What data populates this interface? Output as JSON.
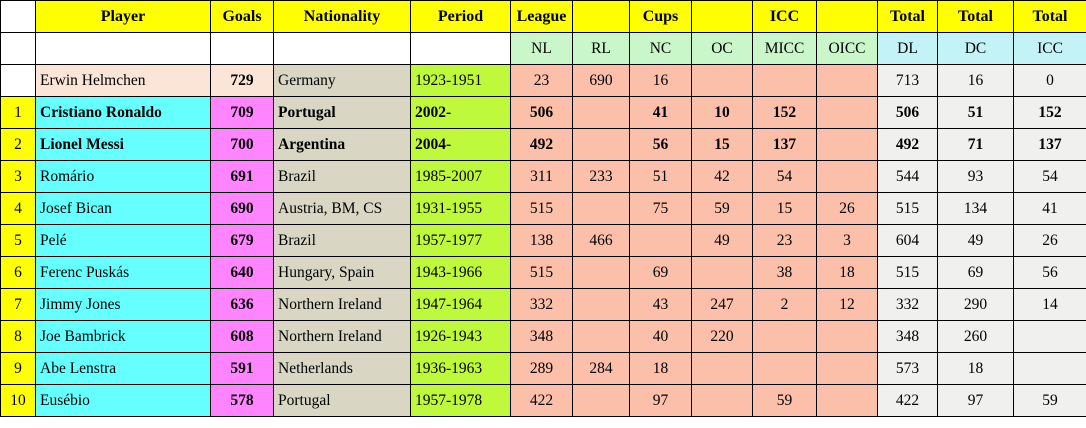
{
  "chart_data": {
    "type": "table",
    "header_row1": [
      "",
      "Player",
      "Goals",
      "Nationality",
      "Period",
      "League",
      "",
      "Cups",
      "",
      "ICC",
      "",
      "Total",
      "Total",
      "Total"
    ],
    "header_row2": [
      "",
      "",
      "",
      "",
      "",
      "NL",
      "RL",
      "NC",
      "OC",
      "MICC",
      "OICC",
      "DL",
      "DC",
      "ICC"
    ],
    "column_keys": [
      "rank",
      "player",
      "goals",
      "nationality",
      "period",
      "nl",
      "rl",
      "nc",
      "oc",
      "micc",
      "oicc",
      "dl",
      "dc",
      "icc"
    ],
    "rows": [
      {
        "rank": "",
        "player": "Erwin Helmchen",
        "goals": "729",
        "nationality": "Germany",
        "period": "1923-1951",
        "nl": "23",
        "rl": "690",
        "nc": "16",
        "oc": "",
        "micc": "",
        "oicc": "",
        "dl": "713",
        "dc": "16",
        "icc": "0",
        "bold": false,
        "unranked": true
      },
      {
        "rank": "1",
        "player": "Cristiano Ronaldo",
        "goals": "709",
        "nationality": "Portugal",
        "period": "2002-",
        "nl": "506",
        "rl": "",
        "nc": "41",
        "oc": "10",
        "micc": "152",
        "oicc": "",
        "dl": "506",
        "dc": "51",
        "icc": "152",
        "bold": true,
        "unranked": false
      },
      {
        "rank": "2",
        "player": "Lionel Messi",
        "goals": "700",
        "nationality": "Argentina",
        "period": "2004-",
        "nl": "492",
        "rl": "",
        "nc": "56",
        "oc": "15",
        "micc": "137",
        "oicc": "",
        "dl": "492",
        "dc": "71",
        "icc": "137",
        "bold": true,
        "unranked": false
      },
      {
        "rank": "3",
        "player": "Romário",
        "goals": "691",
        "nationality": "Brazil",
        "period": "1985-2007",
        "nl": "311",
        "rl": "233",
        "nc": "51",
        "oc": "42",
        "micc": "54",
        "oicc": "",
        "dl": "544",
        "dc": "93",
        "icc": "54",
        "bold": false,
        "unranked": false
      },
      {
        "rank": "4",
        "player": "Josef Bican",
        "goals": "690",
        "nationality": "Austria, BM, CS",
        "period": "1931-1955",
        "nl": "515",
        "rl": "",
        "nc": "75",
        "oc": "59",
        "micc": "15",
        "oicc": "26",
        "dl": "515",
        "dc": "134",
        "icc": "41",
        "bold": false,
        "unranked": false
      },
      {
        "rank": "5",
        "player": "Pelé",
        "goals": "679",
        "nationality": "Brazil",
        "period": "1957-1977",
        "nl": "138",
        "rl": "466",
        "nc": "",
        "oc": "49",
        "micc": "23",
        "oicc": "3",
        "dl": "604",
        "dc": "49",
        "icc": "26",
        "bold": false,
        "unranked": false
      },
      {
        "rank": "6",
        "player": "Ferenc Puskás",
        "goals": "640",
        "nationality": "Hungary, Spain",
        "period": "1943-1966",
        "nl": "515",
        "rl": "",
        "nc": "69",
        "oc": "",
        "micc": "38",
        "oicc": "18",
        "dl": "515",
        "dc": "69",
        "icc": "56",
        "bold": false,
        "unranked": false
      },
      {
        "rank": "7",
        "player": "Jimmy Jones",
        "goals": "636",
        "nationality": "Northern Ireland",
        "period": "1947-1964",
        "nl": "332",
        "rl": "",
        "nc": "43",
        "oc": "247",
        "micc": "2",
        "oicc": "12",
        "dl": "332",
        "dc": "290",
        "icc": "14",
        "bold": false,
        "unranked": false
      },
      {
        "rank": "8",
        "player": "Joe Bambrick",
        "goals": "608",
        "nationality": "Northern Ireland",
        "period": "1926-1943",
        "nl": "348",
        "rl": "",
        "nc": "40",
        "oc": "220",
        "micc": "",
        "oicc": "",
        "dl": "348",
        "dc": "260",
        "icc": "",
        "bold": false,
        "unranked": false
      },
      {
        "rank": "9",
        "player": "Abe Lenstra",
        "goals": "591",
        "nationality": "Netherlands",
        "period": "1936-1963",
        "nl": "289",
        "rl": "284",
        "nc": "18",
        "oc": "",
        "micc": "",
        "oicc": "",
        "dl": "573",
        "dc": "18",
        "icc": "",
        "bold": false,
        "unranked": false
      },
      {
        "rank": "10",
        "player": "Eusébio",
        "goals": "578",
        "nationality": "Portugal",
        "period": "1957-1978",
        "nl": "422",
        "rl": "",
        "nc": "97",
        "oc": "",
        "micc": "59",
        "oicc": "",
        "dl": "422",
        "dc": "97",
        "icc": "59",
        "bold": false,
        "unranked": false
      }
    ],
    "colors": {
      "header_yellow": "#FFFF00",
      "subheader_green": "#C9F7C9",
      "subheader_cyan": "#C4F3F7",
      "rank_yellow": "#FFFF00",
      "player_cyan": "#66FFFF",
      "goals_magenta": "#FF84FF",
      "nationality_tan": "#D9D6C3",
      "period_green": "#BFF93C",
      "stats_salmon": "#FCBFA9",
      "totals_gray": "#F0F0EE",
      "special_peach": "#FBE5D6",
      "white": "#FFFFFF",
      "border_black": "#000000"
    }
  }
}
